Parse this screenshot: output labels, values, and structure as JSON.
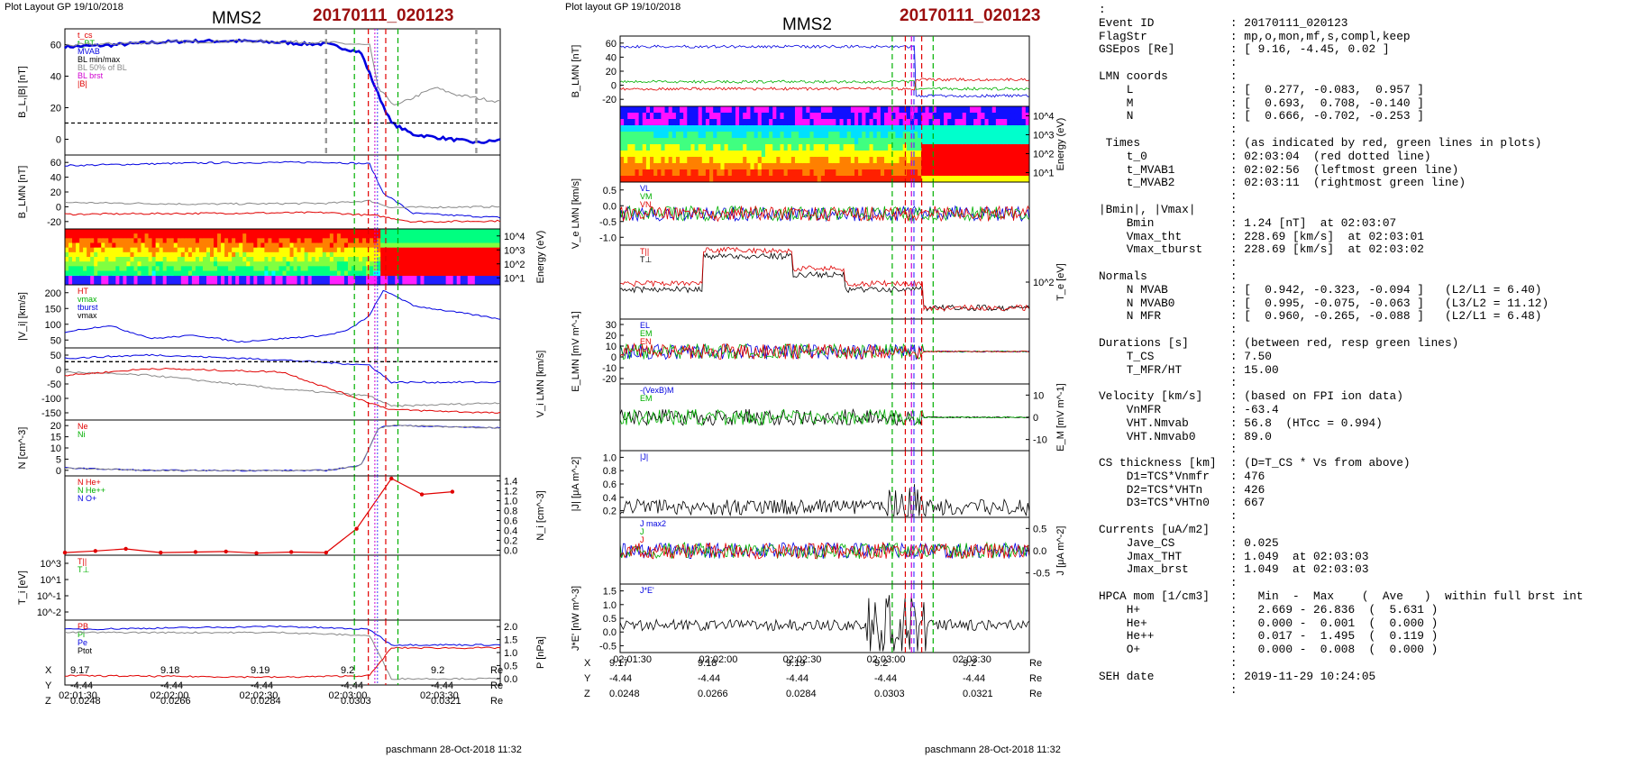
{
  "header": {
    "left_label": "Plot Layout GP 19/10/2018",
    "right_label": "Plot layout GP 19/10/2018",
    "sc_left": "MMS2",
    "sc_right": "MMS2",
    "event_left": "20170111_020123",
    "event_right": "20170111_020123"
  },
  "footer": {
    "left": "paschmann 28-Oct-2018 11:32",
    "right": "paschmann 28-Oct-2018 11:32"
  },
  "time_axis": {
    "labels": [
      "02:01:30",
      "02:02:00",
      "02:02:30",
      "02:03:00",
      "02:03:30"
    ]
  },
  "ephemeris": {
    "rows": [
      {
        "name": "X",
        "values": [
          "9.17",
          "9.18",
          "9.19",
          "9.2",
          "9.2"
        ],
        "unit": "Re"
      },
      {
        "name": "Y",
        "values": [
          "-4.44",
          "-4.44",
          "-4.44",
          "-4.44",
          "-4.44"
        ],
        "unit": "Re"
      },
      {
        "name": "Z",
        "values": [
          "0.0248",
          "0.0266",
          "0.0284",
          "0.0303",
          "0.0321"
        ],
        "unit": "Re"
      }
    ]
  },
  "colors": {
    "red": "#e00000",
    "green": "#00b000",
    "blue": "#0000e0",
    "black": "#000000",
    "gray": "#888888",
    "magenta": "#d000d0",
    "event": "#9b0d0d"
  },
  "chart_data": [
    {
      "type": "line",
      "panel": "left-1",
      "ylabel": "B_L,|B| [nT]",
      "yticks": [
        "60",
        "40",
        "20",
        "0"
      ],
      "legend": [
        "t_cs",
        "t_BT",
        "MVAB",
        "BL min/max",
        "BL 50% of BL",
        "BL brst",
        "|B|"
      ],
      "series": [
        {
          "name": "BL brst",
          "x": [
            0,
            0.1,
            0.2,
            0.3,
            0.4,
            0.5,
            0.55,
            0.6,
            0.68,
            0.72,
            0.75,
            0.8,
            0.85,
            0.9,
            0.95,
            1
          ],
          "values": [
            54,
            55,
            57,
            58,
            58,
            57,
            56,
            56,
            50,
            20,
            0,
            -8,
            -10,
            -12,
            -14,
            -12
          ]
        },
        {
          "name": "|B|",
          "x": [
            0,
            0.2,
            0.4,
            0.6,
            0.7,
            0.72,
            0.76,
            0.8,
            0.85,
            0.9,
            1
          ],
          "values": [
            55,
            57,
            58,
            57,
            55,
            24,
            12,
            18,
            25,
            20,
            15
          ]
        }
      ]
    },
    {
      "type": "line",
      "panel": "left-2",
      "ylabel": "B_LMN [nT]",
      "yticks": [
        "60",
        "40",
        "20",
        "0",
        "-20"
      ],
      "series": [
        {
          "name": "BL",
          "x": [
            0,
            0.3,
            0.6,
            0.7,
            0.73,
            0.8,
            1
          ],
          "values": [
            52,
            55,
            56,
            54,
            20,
            -5,
            -10
          ]
        },
        {
          "name": "BM",
          "x": [
            0,
            0.3,
            0.6,
            0.7,
            0.75,
            1
          ],
          "values": [
            8,
            6,
            7,
            10,
            2,
            3
          ]
        },
        {
          "name": "BN",
          "x": [
            0,
            0.3,
            0.6,
            0.72,
            0.8,
            1
          ],
          "values": [
            -6,
            -5,
            -4,
            -8,
            -15,
            -14
          ]
        }
      ]
    },
    {
      "type": "heatmap",
      "panel": "left-3",
      "ylabel": "Energy (eV)",
      "yticks": [
        "10^4",
        "10^3",
        "10^2",
        "10^1"
      ]
    },
    {
      "type": "line",
      "panel": "left-4",
      "ylabel": "|V_i| [km/s]",
      "yticks": [
        "200",
        "150",
        "100",
        "50"
      ],
      "legend": [
        "HT",
        "vmax",
        "tburst",
        "vmax"
      ],
      "series": [
        {
          "name": "|Vi|",
          "x": [
            0,
            0.1,
            0.2,
            0.3,
            0.4,
            0.5,
            0.6,
            0.65,
            0.7,
            0.73,
            0.76,
            0.8,
            0.9,
            1
          ],
          "values": [
            90,
            110,
            70,
            80,
            60,
            70,
            80,
            95,
            140,
            215,
            200,
            170,
            150,
            130
          ]
        }
      ]
    },
    {
      "type": "line",
      "panel": "left-5",
      "ylabel": "V_i LMN [km/s]",
      "yticks": [
        "50",
        "0",
        "-50",
        "-100",
        "-150"
      ],
      "series": [
        {
          "name": "VL",
          "x": [
            0,
            0.2,
            0.5,
            0.7,
            0.75,
            1
          ],
          "values": [
            10,
            20,
            5,
            -10,
            -60,
            -60
          ]
        },
        {
          "name": "VM",
          "x": [
            0,
            0.2,
            0.5,
            0.7,
            0.75,
            1
          ],
          "values": [
            -30,
            -40,
            -80,
            -100,
            -130,
            -120
          ]
        },
        {
          "name": "VN",
          "x": [
            0,
            0.2,
            0.5,
            0.7,
            0.75,
            1
          ],
          "values": [
            -40,
            -20,
            -30,
            -120,
            -140,
            -150
          ]
        }
      ]
    },
    {
      "type": "line",
      "panel": "left-6",
      "ylabel": "N [cm^-3]",
      "yticks": [
        "20",
        "15",
        "10",
        "5",
        "0"
      ],
      "legend": [
        "Ne",
        "Ni"
      ],
      "series": [
        {
          "name": "Ne",
          "x": [
            0,
            0.2,
            0.4,
            0.6,
            0.68,
            0.72,
            0.75,
            1
          ],
          "values": [
            4,
            3,
            3,
            3,
            5,
            20,
            21,
            20
          ]
        },
        {
          "name": "Ni",
          "x": [
            0,
            0.2,
            0.4,
            0.6,
            0.68,
            0.72,
            0.75,
            1
          ],
          "values": [
            4,
            3,
            3,
            3,
            5,
            20,
            21,
            20
          ]
        }
      ]
    },
    {
      "type": "scatter",
      "panel": "left-7",
      "ylabel": "N_i [cm^-3]",
      "yticks": [
        "1.4",
        "1.2",
        "1.0",
        "0.8",
        "0.6",
        "0.4",
        "0.2",
        "0.0"
      ],
      "legend": [
        "N He+",
        "N He++",
        "N O+"
      ],
      "series": [
        {
          "name": "N He++",
          "x": [
            0,
            0.07,
            0.14,
            0.22,
            0.3,
            0.37,
            0.44,
            0.52,
            0.6,
            0.67,
            0.75,
            0.82,
            0.89
          ],
          "values": [
            0.05,
            0.08,
            0.12,
            0.05,
            0.06,
            0.07,
            0.04,
            0.06,
            0.05,
            0.5,
            1.45,
            1.15,
            1.2
          ]
        }
      ]
    },
    {
      "type": "line",
      "panel": "left-8",
      "ylabel": "T_i [eV]",
      "yticks": [
        "10^3",
        "10^1",
        "10^-1",
        "10^-2"
      ],
      "legend": [
        "T||",
        "T⊥"
      ]
    },
    {
      "type": "line",
      "panel": "left-9",
      "ylabel": "P [nPa]",
      "yticks": [
        "2.0",
        "1.5",
        "1.0",
        "0.5",
        "0.0"
      ],
      "legend": [
        "PB",
        "Pi",
        "Pe",
        "Ptot"
      ],
      "series": [
        {
          "name": "Ptot",
          "x": [
            0,
            0.5,
            0.7,
            0.75,
            1
          ],
          "values": [
            1.7,
            1.8,
            1.7,
            1.2,
            1.2
          ]
        },
        {
          "name": "PB",
          "x": [
            0,
            0.5,
            0.7,
            0.75,
            1
          ],
          "values": [
            1.6,
            1.6,
            1.5,
            0.1,
            0.1
          ]
        },
        {
          "name": "Pi",
          "x": [
            0,
            0.5,
            0.7,
            0.75,
            1
          ],
          "values": [
            0.2,
            0.15,
            0.2,
            1.1,
            1.1
          ]
        }
      ]
    },
    {
      "type": "line",
      "panel": "right-1",
      "ylabel": "B_LMN [nT]",
      "yticks": [
        "60",
        "40",
        "20",
        "0",
        "-20"
      ]
    },
    {
      "type": "heatmap",
      "panel": "right-2",
      "ylabel": "Energy (eV)",
      "yticks": [
        "10^4",
        "10^3",
        "10^2",
        "10^1"
      ]
    },
    {
      "type": "line",
      "panel": "right-3",
      "ylabel": "V_e LMN [km/s]",
      "yticks": [
        "0.5",
        "0.0",
        "-0.5",
        "-1.0"
      ],
      "legend": [
        "VL",
        "VM",
        "VN"
      ]
    },
    {
      "type": "line",
      "panel": "right-4",
      "ylabel": "T_e [eV]",
      "yticks": [
        "10^2"
      ],
      "legend": [
        "T||",
        "T⊥"
      ]
    },
    {
      "type": "line",
      "panel": "right-5",
      "ylabel": "E_LMN [mV m^-1]",
      "yticks": [
        "30",
        "20",
        "10",
        "0",
        "-10",
        "-20"
      ],
      "legend": [
        "EL",
        "EM",
        "EN"
      ]
    },
    {
      "type": "line",
      "panel": "right-6",
      "ylabel": "E_M [mV m^-1]",
      "yticks": [
        "10",
        "0",
        "-10"
      ],
      "legend": [
        "-(VexB)M",
        "EM"
      ]
    },
    {
      "type": "line",
      "panel": "right-7",
      "ylabel": "|J| [μA m^-2]",
      "yticks": [
        "1.0",
        "0.8",
        "0.6",
        "0.4",
        "0.2"
      ],
      "legend": [
        "|J|"
      ]
    },
    {
      "type": "line",
      "panel": "right-8",
      "ylabel": "J [μA m^-2]",
      "yticks": [
        "0.5",
        "0.0",
        "-0.5"
      ],
      "legend": [
        "J max2",
        "J",
        "J"
      ]
    },
    {
      "type": "line",
      "panel": "right-9",
      "ylabel": "J*E' [nW m^-3]",
      "yticks": [
        "1.5",
        "1.0",
        "0.5",
        "0.0",
        "-0.5"
      ],
      "legend": [
        "J*E'"
      ]
    }
  ],
  "text_panel": {
    "lines": [
      ":",
      "Event ID           : 20170111_020123",
      "FlagStr            : mp,o,mon,mf,s,compl,keep",
      "GSEpos [Re]        : [ 9.16, -4.45, 0.02 ]",
      "                   :",
      "LMN coords         :",
      "    L              : [  0.277, -0.083,  0.957 ]",
      "    M              : [  0.693,  0.708, -0.140 ]",
      "    N              : [  0.666, -0.702, -0.253 ]",
      "                   :",
      " Times             : (as indicated by red, green lines in plots)",
      "    t_0            : 02:03:04  (red dotted line)",
      "    t_MVAB1        : 02:02:56  (leftmost green line)",
      "    t_MVAB2        : 02:03:11  (rightmost green line)",
      "                   :",
      "|Bmin|, |Vmax|     :",
      "    Bmin           : 1.24 [nT]  at 02:03:07",
      "    Vmax_tht       : 228.69 [km/s]  at 02:03:01",
      "    Vmax_tburst    : 228.69 [km/s]  at 02:03:02",
      "                   :",
      "Normals            :",
      "    N MVAB         : [  0.942, -0.323, -0.094 ]   (L2/L1 = 6.40)",
      "    N MVAB0        : [  0.995, -0.075, -0.063 ]   (L3/L2 = 11.12)",
      "    N MFR          : [  0.960, -0.265, -0.088 ]   (L2/L1 = 6.48)",
      "                   :",
      "Durations [s]      : (between red, resp green lines)",
      "    T_CS           : 7.50",
      "    T_MFR/HT       : 15.00",
      "                   :",
      "Velocity [km/s]    : (based on FPI ion data)",
      "    VnMFR          : -63.4",
      "    VHT.Nmvab      : 56.8  (HTcc = 0.994)",
      "    VHT.Nmvab0     : 89.0",
      "                   :",
      "CS thickness [km]  : (D=T_CS * Vs from above)",
      "    D1=TCS*Vnmfr   : 476",
      "    D2=TCS*VHTn    : 426",
      "    D3=TCS*VHTn0   : 667",
      "                   :",
      "Currents [uA/m2]   :",
      "    Jave_CS        : 0.025",
      "    Jmax_THT       : 1.049  at 02:03:03",
      "    Jmax_brst      : 1.049  at 02:03:03",
      "                   :",
      "HPCA mom [1/cm3]   :   Min  -  Max    (  Ave   )  within full brst int",
      "    H+             :   2.669 - 26.836  (  5.631 )",
      "    He+            :   0.000 -  0.001  (  0.000 )",
      "    He++           :   0.017 -  1.495  (  0.119 )",
      "    O+             :   0.000 -  0.008  (  0.000 )",
      "                   :",
      "SEH date           : 2019-11-29 10:24:05",
      "                   :"
    ]
  }
}
